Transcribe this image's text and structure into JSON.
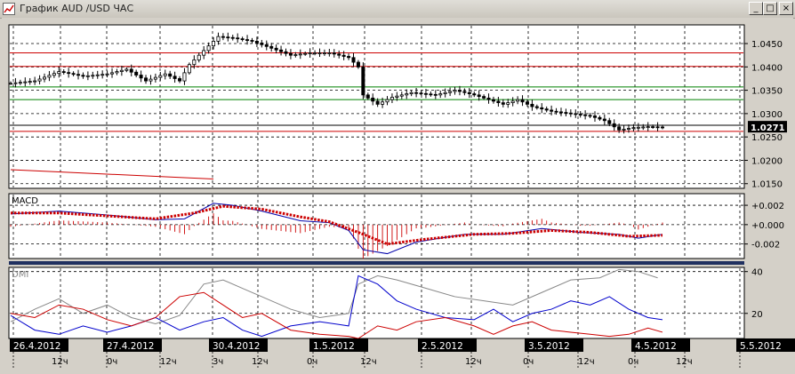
{
  "window": {
    "title": "График AUD /USD  ЧАС",
    "buttons": {
      "minimize": "_",
      "maximize": "□",
      "close": "×"
    }
  },
  "colors": {
    "background": "#ffffff",
    "resistance_line": "#cc0000",
    "support_line": "#008000",
    "macd_signal": "#cc0000",
    "dmi_plus": "#0000cc",
    "dmi_minus": "#cc0000",
    "adx": "#888888",
    "date_label_bg": "#000000"
  },
  "chart_data": [
    {
      "type": "candlestick",
      "panel": "price",
      "ylim": [
        1.014,
        1.049
      ],
      "y_ticks": [
        "1.0450",
        "1.0400",
        "1.0350",
        "1.0300",
        "1.0250",
        "1.0200",
        "1.0150"
      ],
      "current_price": "1.0271",
      "horizontal_lines": [
        {
          "value": 1.043,
          "color": "red"
        },
        {
          "value": 1.0401,
          "color": "red"
        },
        {
          "value": 1.0357,
          "color": "green"
        },
        {
          "value": 1.033,
          "color": "green"
        },
        {
          "value": 1.0275,
          "color": "black"
        },
        {
          "value": 1.0262,
          "color": "red"
        }
      ],
      "close_path": [
        [
          0,
          1.0365
        ],
        [
          5,
          1.037
        ],
        [
          10,
          1.039
        ],
        [
          15,
          1.038
        ],
        [
          20,
          1.0385
        ],
        [
          24,
          1.0395
        ],
        [
          28,
          1.037
        ],
        [
          32,
          1.0385
        ],
        [
          35,
          1.037
        ],
        [
          37,
          1.0405
        ],
        [
          40,
          1.0435
        ],
        [
          43,
          1.0465
        ],
        [
          46,
          1.0462
        ],
        [
          50,
          1.0455
        ],
        [
          54,
          1.044
        ],
        [
          58,
          1.0425
        ],
        [
          62,
          1.043
        ],
        [
          66,
          1.043
        ],
        [
          70,
          1.042
        ],
        [
          72,
          1.04
        ],
        [
          73,
          1.034
        ],
        [
          76,
          1.032
        ],
        [
          79,
          1.0335
        ],
        [
          83,
          1.0345
        ],
        [
          88,
          1.034
        ],
        [
          92,
          1.035
        ],
        [
          96,
          1.034
        ],
        [
          99,
          1.033
        ],
        [
          102,
          1.032
        ],
        [
          105,
          1.033
        ],
        [
          108,
          1.0315
        ],
        [
          112,
          1.0305
        ],
        [
          116,
          1.03
        ],
        [
          120,
          1.0295
        ],
        [
          123,
          1.0285
        ],
        [
          126,
          1.0265
        ],
        [
          129,
          1.027
        ],
        [
          132,
          1.0272
        ],
        [
          135,
          1.0271
        ]
      ],
      "trend_line": [
        [
          0,
          1.018
        ],
        [
          42,
          1.016
        ]
      ]
    },
    {
      "type": "line",
      "panel": "indicator",
      "name": "MACD",
      "ylim": [
        -0.0035,
        0.0032
      ],
      "y_ticks": [
        "+0.002",
        "+0.000",
        "-0.002"
      ],
      "series": [
        {
          "role": "macd",
          "points": [
            [
              0,
              0.0011
            ],
            [
              10,
              0.0014
            ],
            [
              20,
              0.001
            ],
            [
              30,
              0.0005
            ],
            [
              36,
              0.0006
            ],
            [
              42,
              0.0022
            ],
            [
              46,
              0.002
            ],
            [
              52,
              0.0014
            ],
            [
              60,
              0.0004
            ],
            [
              66,
              0.0002
            ],
            [
              70,
              -0.0006
            ],
            [
              73,
              -0.0026
            ],
            [
              78,
              -0.003
            ],
            [
              84,
              -0.0018
            ],
            [
              94,
              -0.001
            ],
            [
              102,
              -0.001
            ],
            [
              110,
              -0.0004
            ],
            [
              118,
              -0.0008
            ],
            [
              126,
              -0.001
            ],
            [
              130,
              -0.0014
            ],
            [
              135,
              -0.001
            ]
          ]
        },
        {
          "role": "signal",
          "points": [
            [
              0,
              0.0012
            ],
            [
              10,
              0.0012
            ],
            [
              20,
              0.0009
            ],
            [
              30,
              0.0006
            ],
            [
              38,
              0.0012
            ],
            [
              44,
              0.0019
            ],
            [
              52,
              0.0016
            ],
            [
              60,
              0.0008
            ],
            [
              66,
              0.0003
            ],
            [
              72,
              -0.0008
            ],
            [
              78,
              -0.002
            ],
            [
              86,
              -0.0015
            ],
            [
              96,
              -0.001
            ],
            [
              104,
              -0.0009
            ],
            [
              112,
              -0.0006
            ],
            [
              120,
              -0.0008
            ],
            [
              128,
              -0.0012
            ],
            [
              135,
              -0.0011
            ]
          ]
        }
      ]
    },
    {
      "type": "line",
      "panel": "indicator",
      "name": "DMI",
      "ylim": [
        8,
        42
      ],
      "y_ticks": [
        "40",
        "20"
      ],
      "series": [
        {
          "role": "adx",
          "points": [
            [
              0,
              16
            ],
            [
              5,
              22
            ],
            [
              10,
              27
            ],
            [
              15,
              20
            ],
            [
              20,
              24
            ],
            [
              25,
              18
            ],
            [
              30,
              15
            ],
            [
              35,
              19
            ],
            [
              40,
              34
            ],
            [
              44,
              36
            ],
            [
              48,
              32
            ],
            [
              52,
              28
            ],
            [
              58,
              22
            ],
            [
              64,
              18
            ],
            [
              70,
              20
            ],
            [
              72,
              34
            ],
            [
              76,
              38
            ],
            [
              80,
              36
            ],
            [
              86,
              32
            ],
            [
              92,
              28
            ],
            [
              98,
              26
            ],
            [
              104,
              24
            ],
            [
              110,
              30
            ],
            [
              116,
              36
            ],
            [
              122,
              37
            ],
            [
              126,
              41
            ],
            [
              130,
              40
            ],
            [
              134,
              37
            ]
          ]
        },
        {
          "role": "di_plus",
          "points": [
            [
              0,
              19
            ],
            [
              5,
              12
            ],
            [
              10,
              10
            ],
            [
              15,
              14
            ],
            [
              20,
              11
            ],
            [
              25,
              14
            ],
            [
              30,
              18
            ],
            [
              35,
              12
            ],
            [
              40,
              16
            ],
            [
              44,
              18
            ],
            [
              48,
              12
            ],
            [
              52,
              9
            ],
            [
              58,
              14
            ],
            [
              64,
              16
            ],
            [
              70,
              14
            ],
            [
              72,
              38
            ],
            [
              76,
              34
            ],
            [
              80,
              26
            ],
            [
              84,
              22
            ],
            [
              90,
              18
            ],
            [
              96,
              17
            ],
            [
              100,
              22
            ],
            [
              104,
              16
            ],
            [
              108,
              20
            ],
            [
              112,
              22
            ],
            [
              116,
              26
            ],
            [
              120,
              24
            ],
            [
              124,
              28
            ],
            [
              128,
              22
            ],
            [
              132,
              18
            ],
            [
              135,
              17
            ]
          ]
        },
        {
          "role": "di_minus",
          "points": [
            [
              0,
              20
            ],
            [
              5,
              18
            ],
            [
              10,
              24
            ],
            [
              15,
              22
            ],
            [
              20,
              17
            ],
            [
              25,
              14
            ],
            [
              30,
              18
            ],
            [
              35,
              28
            ],
            [
              40,
              30
            ],
            [
              44,
              24
            ],
            [
              48,
              18
            ],
            [
              52,
              20
            ],
            [
              58,
              12
            ],
            [
              64,
              10
            ],
            [
              70,
              9
            ],
            [
              72,
              8
            ],
            [
              76,
              14
            ],
            [
              80,
              12
            ],
            [
              84,
              16
            ],
            [
              90,
              18
            ],
            [
              96,
              14
            ],
            [
              100,
              10
            ],
            [
              104,
              14
            ],
            [
              108,
              16
            ],
            [
              112,
              12
            ],
            [
              116,
              11
            ],
            [
              120,
              10
            ],
            [
              124,
              9
            ],
            [
              128,
              10
            ],
            [
              132,
              13
            ],
            [
              135,
              11
            ]
          ]
        }
      ]
    }
  ],
  "x_axis": {
    "dates": [
      "26.4.2012",
      "27.4.2012",
      "30.4.2012",
      "1.5.2012",
      "2.5.2012",
      "3.5.2012",
      "4.5.2012",
      "5.5.2012"
    ],
    "hours": [
      "12ч",
      "0ч",
      "12ч",
      "3ч",
      "12ч",
      "0ч",
      "12ч",
      "12ч",
      "0ч",
      "12ч",
      "0ч",
      "12ч"
    ]
  }
}
